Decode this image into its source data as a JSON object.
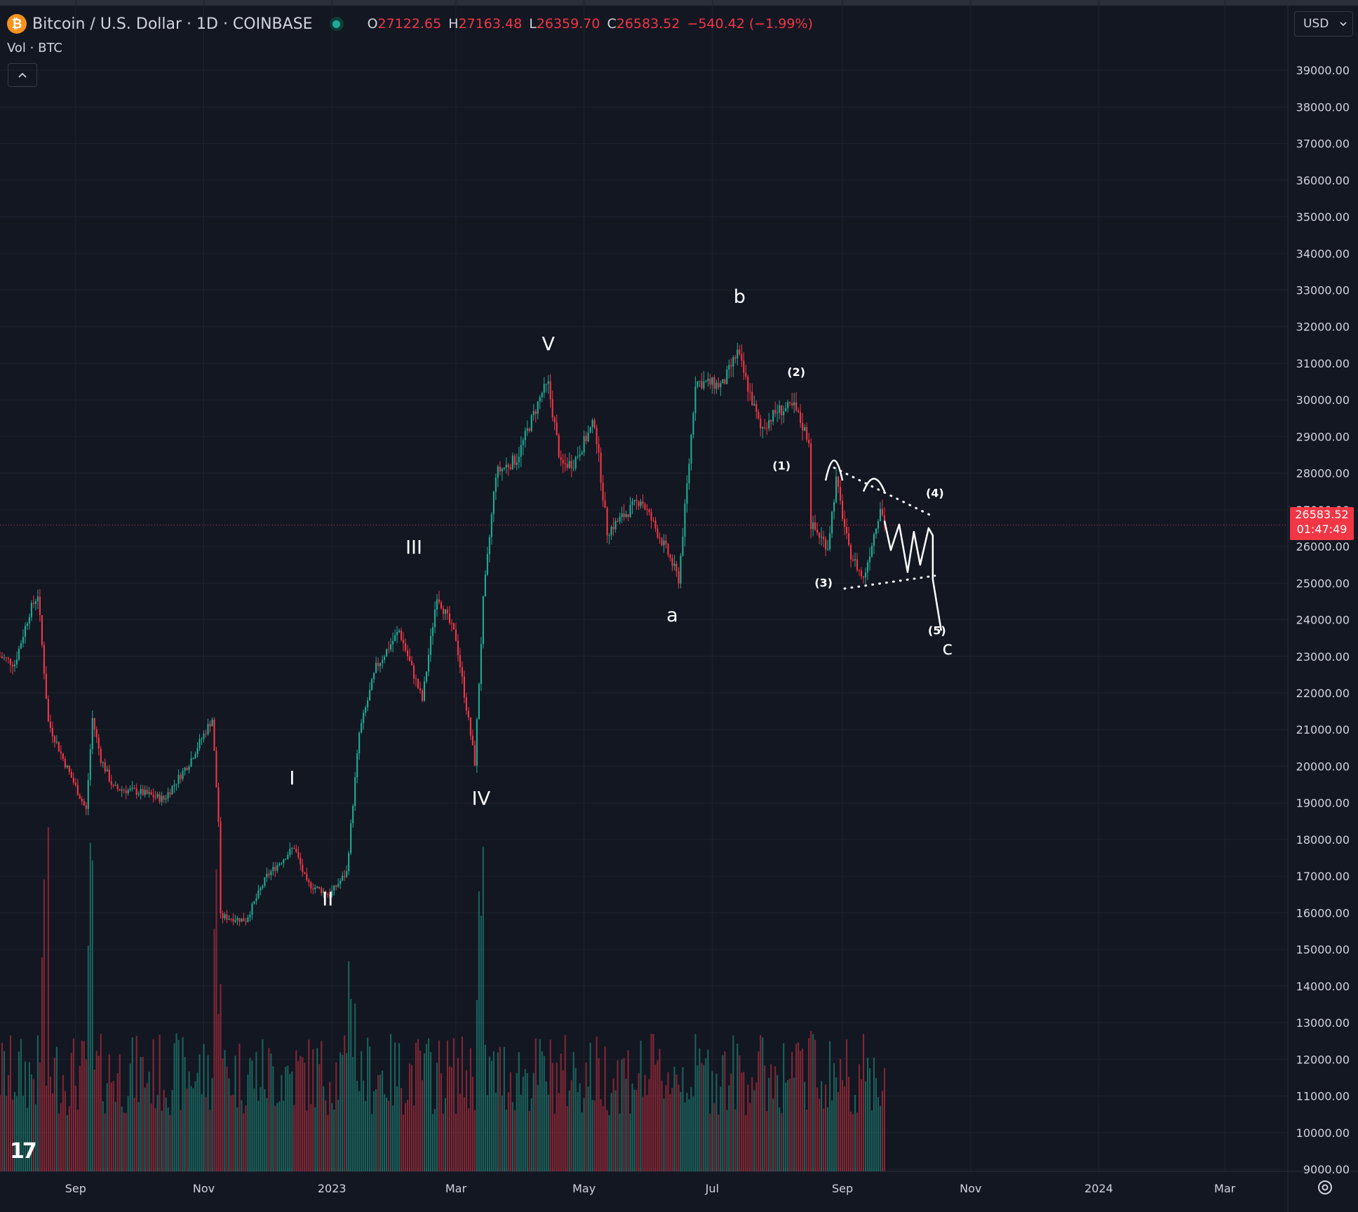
{
  "header": {
    "logo_glyph": "₿",
    "symbol": "Bitcoin / U.S. Dollar · 1D · COINBASE",
    "open_label": "O",
    "open_value": "27122.65",
    "high_label": "H",
    "high_value": "27163.48",
    "low_label": "L",
    "low_value": "26359.70",
    "close_label": "C",
    "close_value": "26583.52",
    "change": "−540.42 (−1.99%)",
    "volume_label": "Vol · BTC",
    "collapse_icon": "chevron-up-icon"
  },
  "currency": {
    "value": "USD",
    "icon": "chevron-down-icon"
  },
  "price_tag": {
    "price": "26583.52",
    "countdown": "01:47:49"
  },
  "colors": {
    "background": "#131722",
    "up": "#22ab94",
    "down": "#f23645",
    "text": "#d1d4dc",
    "grid": "#1e222d",
    "annotation": "#ffffff"
  },
  "chart_data": {
    "type": "candlestick",
    "title": "Bitcoin / U.S. Dollar · 1D · COINBASE",
    "ylim": [
      9000,
      39500
    ],
    "x_range": [
      "2022-07-27",
      "2024-03-31"
    ],
    "y_ticks": [
      "39000.00",
      "38000.00",
      "37000.00",
      "36000.00",
      "35000.00",
      "34000.00",
      "33000.00",
      "32000.00",
      "31000.00",
      "30000.00",
      "29000.00",
      "28000.00",
      "27000.00",
      "26000.00",
      "25000.00",
      "24000.00",
      "23000.00",
      "22000.00",
      "21000.00",
      "20000.00",
      "19000.00",
      "18000.00",
      "17000.00",
      "16000.00",
      "15000.00",
      "14000.00",
      "13000.00",
      "12000.00",
      "11000.00",
      "10000.00",
      "9000.00"
    ],
    "x_ticks": [
      {
        "date": "2022-09-01",
        "label": "Sep"
      },
      {
        "date": "2022-11-01",
        "label": "Nov"
      },
      {
        "date": "2023-01-01",
        "label": "2023"
      },
      {
        "date": "2023-03-01",
        "label": "Mar"
      },
      {
        "date": "2023-05-01",
        "label": "May"
      },
      {
        "date": "2023-07-01",
        "label": "Jul"
      },
      {
        "date": "2023-09-01",
        "label": "Sep"
      },
      {
        "date": "2023-11-01",
        "label": "Nov"
      },
      {
        "date": "2024-01-01",
        "label": "2024"
      },
      {
        "date": "2024-03-01",
        "label": "Mar"
      }
    ],
    "current_price": 26583.52,
    "price_path": [
      [
        "2022-07-27",
        23000
      ],
      [
        "2022-08-03",
        22800
      ],
      [
        "2022-08-10",
        24200
      ],
      [
        "2022-08-14",
        24700
      ],
      [
        "2022-08-19",
        21200
      ],
      [
        "2022-08-26",
        20200
      ],
      [
        "2022-09-06",
        18800
      ],
      [
        "2022-09-09",
        21300
      ],
      [
        "2022-09-13",
        20200
      ],
      [
        "2022-09-19",
        19400
      ],
      [
        "2022-10-01",
        19300
      ],
      [
        "2022-10-13",
        19100
      ],
      [
        "2022-10-25",
        20100
      ],
      [
        "2022-11-05",
        21300
      ],
      [
        "2022-11-08",
        18500
      ],
      [
        "2022-11-09",
        15900
      ],
      [
        "2022-11-21",
        15800
      ],
      [
        "2022-12-01",
        17000
      ],
      [
        "2022-12-14",
        17800
      ],
      [
        "2022-12-20",
        16800
      ],
      [
        "2022-12-31",
        16500
      ],
      [
        "2023-01-08",
        17100
      ],
      [
        "2023-01-14",
        20900
      ],
      [
        "2023-01-22",
        22700
      ],
      [
        "2023-02-02",
        23700
      ],
      [
        "2023-02-13",
        21800
      ],
      [
        "2023-02-20",
        24700
      ],
      [
        "2023-03-01",
        23500
      ],
      [
        "2023-03-10",
        20100
      ],
      [
        "2023-03-14",
        24500
      ],
      [
        "2023-03-20",
        28000
      ],
      [
        "2023-03-30",
        28400
      ],
      [
        "2023-04-11",
        30200
      ],
      [
        "2023-04-14",
        30400
      ],
      [
        "2023-04-20",
        28200
      ],
      [
        "2023-04-26",
        28300
      ],
      [
        "2023-05-06",
        29400
      ],
      [
        "2023-05-12",
        26400
      ],
      [
        "2023-05-28",
        27300
      ],
      [
        "2023-06-10",
        25800
      ],
      [
        "2023-06-15",
        25100
      ],
      [
        "2023-06-20",
        28300
      ],
      [
        "2023-06-23",
        30500
      ],
      [
        "2023-07-06",
        30400
      ],
      [
        "2023-07-13",
        31300
      ],
      [
        "2023-07-24",
        29200
      ],
      [
        "2023-08-01",
        29700
      ],
      [
        "2023-08-09",
        29800
      ],
      [
        "2023-08-16",
        28900
      ],
      [
        "2023-08-17",
        26600
      ],
      [
        "2023-08-25",
        26000
      ],
      [
        "2023-08-29",
        27800
      ],
      [
        "2023-09-04",
        25900
      ],
      [
        "2023-09-11",
        25100
      ],
      [
        "2023-09-19",
        27100
      ],
      [
        "2023-09-21",
        26600
      ]
    ],
    "volume_ylim": [
      0,
      9000
    ],
    "annotations": [
      {
        "text": "I",
        "date": "2022-12-13",
        "price": 19500,
        "size": "large"
      },
      {
        "text": "II",
        "date": "2022-12-30",
        "price": 16200,
        "size": "large"
      },
      {
        "text": "III",
        "date": "2023-02-09",
        "price": 25800,
        "size": "large"
      },
      {
        "text": "IV",
        "date": "2023-03-13",
        "price": 18950,
        "size": "large"
      },
      {
        "text": "V",
        "date": "2023-04-14",
        "price": 31350,
        "size": "large"
      },
      {
        "text": "a",
        "date": "2023-06-12",
        "price": 23950,
        "size": "large"
      },
      {
        "text": "b",
        "date": "2023-07-14",
        "price": 32650,
        "size": "large"
      },
      {
        "text": "(1)",
        "date": "2023-08-03",
        "price": 28100,
        "size": "small"
      },
      {
        "text": "(2)",
        "date": "2023-08-10",
        "price": 30650,
        "size": "small"
      },
      {
        "text": "(3)",
        "date": "2023-08-23",
        "price": 24900,
        "size": "small"
      },
      {
        "text": "(4)",
        "date": "2023-10-15",
        "price": 27350,
        "size": "small"
      },
      {
        "text": "(5)",
        "date": "2023-10-16",
        "price": 23600,
        "size": "small"
      },
      {
        "text": "c",
        "date": "2023-10-21",
        "price": 23050,
        "size": "large"
      }
    ],
    "drawings": {
      "upper_trendline": [
        [
          "2023-08-28",
          28150
        ],
        [
          "2023-10-13",
          26850
        ]
      ],
      "lower_trendline": [
        [
          "2023-09-02",
          24850
        ],
        [
          "2023-10-15",
          25200
        ]
      ],
      "projection": [
        [
          "2023-09-21",
          26700
        ],
        [
          "2023-09-24",
          25900
        ],
        [
          "2023-09-28",
          26600
        ],
        [
          "2023-10-02",
          25300
        ],
        [
          "2023-10-05",
          26400
        ],
        [
          "2023-10-08",
          25500
        ],
        [
          "2023-10-12",
          26500
        ],
        [
          "2023-10-14",
          26300
        ],
        [
          "2023-10-14",
          25100
        ],
        [
          "2023-10-18",
          23700
        ]
      ],
      "arcs": [
        [
          "2023-08-24",
          "2023-09-01",
          27800,
          28350
        ],
        [
          "2023-09-11",
          "2023-09-21",
          27500,
          27850
        ]
      ]
    }
  }
}
